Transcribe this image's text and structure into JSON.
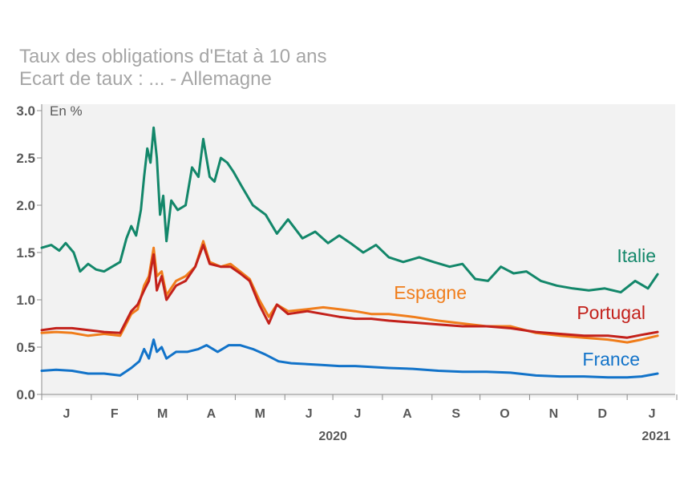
{
  "chart_data": {
    "type": "line",
    "title": "Taux des obligations d'Etat à 10 ans",
    "subtitle": "Ecart de taux : ... - Allemagne",
    "unit_label": "En %",
    "ylim": [
      0,
      3
    ],
    "yticks": [
      "0.0",
      "0.5",
      "1.0",
      "1.5",
      "2.0",
      "2.5",
      "3.0"
    ],
    "x_range": [
      "2020-01-01",
      "2021-01-31"
    ],
    "month_labels": [
      "J",
      "F",
      "M",
      "A",
      "M",
      "J",
      "J",
      "A",
      "S",
      "O",
      "N",
      "D",
      "J"
    ],
    "year_labels": [
      "2020",
      "2021"
    ],
    "grid": false,
    "legend": "inline labels at right end of each series",
    "series": [
      {
        "name": "Italie",
        "color": "#13876a",
        "points": [
          [
            "2020-01-01",
            1.55
          ],
          [
            "2020-01-07",
            1.58
          ],
          [
            "2020-01-12",
            1.52
          ],
          [
            "2020-01-16",
            1.6
          ],
          [
            "2020-01-21",
            1.5
          ],
          [
            "2020-01-25",
            1.3
          ],
          [
            "2020-01-30",
            1.38
          ],
          [
            "2020-02-04",
            1.32
          ],
          [
            "2020-02-09",
            1.3
          ],
          [
            "2020-02-14",
            1.35
          ],
          [
            "2020-02-19",
            1.4
          ],
          [
            "2020-02-23",
            1.65
          ],
          [
            "2020-02-26",
            1.78
          ],
          [
            "2020-02-29",
            1.68
          ],
          [
            "2020-03-03",
            1.95
          ],
          [
            "2020-03-05",
            2.3
          ],
          [
            "2020-03-07",
            2.6
          ],
          [
            "2020-03-09",
            2.45
          ],
          [
            "2020-03-11",
            2.82
          ],
          [
            "2020-03-13",
            2.5
          ],
          [
            "2020-03-15",
            1.9
          ],
          [
            "2020-03-17",
            2.1
          ],
          [
            "2020-03-19",
            1.62
          ],
          [
            "2020-03-22",
            2.05
          ],
          [
            "2020-03-26",
            1.95
          ],
          [
            "2020-03-31",
            2.0
          ],
          [
            "2020-04-04",
            2.4
          ],
          [
            "2020-04-08",
            2.3
          ],
          [
            "2020-04-11",
            2.7
          ],
          [
            "2020-04-15",
            2.3
          ],
          [
            "2020-04-18",
            2.25
          ],
          [
            "2020-04-22",
            2.5
          ],
          [
            "2020-04-26",
            2.45
          ],
          [
            "2020-04-30",
            2.35
          ],
          [
            "2020-05-05",
            2.2
          ],
          [
            "2020-05-12",
            2.0
          ],
          [
            "2020-05-20",
            1.9
          ],
          [
            "2020-05-27",
            1.7
          ],
          [
            "2020-06-03",
            1.85
          ],
          [
            "2020-06-12",
            1.65
          ],
          [
            "2020-06-20",
            1.72
          ],
          [
            "2020-06-28",
            1.6
          ],
          [
            "2020-07-05",
            1.68
          ],
          [
            "2020-07-12",
            1.6
          ],
          [
            "2020-07-20",
            1.5
          ],
          [
            "2020-07-28",
            1.58
          ],
          [
            "2020-08-05",
            1.45
          ],
          [
            "2020-08-14",
            1.4
          ],
          [
            "2020-08-24",
            1.45
          ],
          [
            "2020-09-02",
            1.4
          ],
          [
            "2020-09-12",
            1.35
          ],
          [
            "2020-09-20",
            1.38
          ],
          [
            "2020-09-28",
            1.22
          ],
          [
            "2020-10-06",
            1.2
          ],
          [
            "2020-10-14",
            1.35
          ],
          [
            "2020-10-22",
            1.28
          ],
          [
            "2020-10-30",
            1.3
          ],
          [
            "2020-11-08",
            1.2
          ],
          [
            "2020-11-18",
            1.15
          ],
          [
            "2020-11-28",
            1.12
          ],
          [
            "2020-12-08",
            1.1
          ],
          [
            "2020-12-18",
            1.12
          ],
          [
            "2020-12-28",
            1.08
          ],
          [
            "2021-01-06",
            1.2
          ],
          [
            "2021-01-14",
            1.12
          ],
          [
            "2021-01-20",
            1.27
          ]
        ]
      },
      {
        "name": "Espagne",
        "color": "#f07d1b",
        "points": [
          [
            "2020-01-01",
            0.65
          ],
          [
            "2020-01-10",
            0.66
          ],
          [
            "2020-01-20",
            0.65
          ],
          [
            "2020-01-30",
            0.62
          ],
          [
            "2020-02-09",
            0.64
          ],
          [
            "2020-02-19",
            0.62
          ],
          [
            "2020-02-26",
            0.85
          ],
          [
            "2020-03-01",
            0.9
          ],
          [
            "2020-03-05",
            1.15
          ],
          [
            "2020-03-08",
            1.25
          ],
          [
            "2020-03-11",
            1.55
          ],
          [
            "2020-03-13",
            1.25
          ],
          [
            "2020-03-16",
            1.3
          ],
          [
            "2020-03-19",
            1.05
          ],
          [
            "2020-03-25",
            1.2
          ],
          [
            "2020-03-31",
            1.25
          ],
          [
            "2020-04-06",
            1.35
          ],
          [
            "2020-04-11",
            1.62
          ],
          [
            "2020-04-15",
            1.4
          ],
          [
            "2020-04-22",
            1.35
          ],
          [
            "2020-04-28",
            1.38
          ],
          [
            "2020-05-04",
            1.3
          ],
          [
            "2020-05-10",
            1.22
          ],
          [
            "2020-05-16",
            1.0
          ],
          [
            "2020-05-22",
            0.82
          ],
          [
            "2020-05-27",
            0.95
          ],
          [
            "2020-06-03",
            0.88
          ],
          [
            "2020-06-15",
            0.9
          ],
          [
            "2020-06-25",
            0.92
          ],
          [
            "2020-07-05",
            0.9
          ],
          [
            "2020-07-15",
            0.88
          ],
          [
            "2020-07-25",
            0.85
          ],
          [
            "2020-08-05",
            0.85
          ],
          [
            "2020-08-20",
            0.82
          ],
          [
            "2020-09-05",
            0.78
          ],
          [
            "2020-09-20",
            0.75
          ],
          [
            "2020-10-05",
            0.72
          ],
          [
            "2020-10-20",
            0.72
          ],
          [
            "2020-11-05",
            0.65
          ],
          [
            "2020-11-20",
            0.62
          ],
          [
            "2020-12-05",
            0.6
          ],
          [
            "2020-12-20",
            0.58
          ],
          [
            "2021-01-01",
            0.55
          ],
          [
            "2021-01-10",
            0.58
          ],
          [
            "2021-01-20",
            0.62
          ]
        ]
      },
      {
        "name": "Portugal",
        "color": "#c3211b",
        "points": [
          [
            "2020-01-01",
            0.68
          ],
          [
            "2020-01-10",
            0.7
          ],
          [
            "2020-01-20",
            0.7
          ],
          [
            "2020-01-30",
            0.68
          ],
          [
            "2020-02-09",
            0.66
          ],
          [
            "2020-02-19",
            0.65
          ],
          [
            "2020-02-26",
            0.88
          ],
          [
            "2020-03-01",
            0.95
          ],
          [
            "2020-03-05",
            1.1
          ],
          [
            "2020-03-08",
            1.2
          ],
          [
            "2020-03-11",
            1.48
          ],
          [
            "2020-03-13",
            1.1
          ],
          [
            "2020-03-16",
            1.25
          ],
          [
            "2020-03-19",
            1.0
          ],
          [
            "2020-03-25",
            1.15
          ],
          [
            "2020-03-31",
            1.2
          ],
          [
            "2020-04-06",
            1.35
          ],
          [
            "2020-04-11",
            1.58
          ],
          [
            "2020-04-15",
            1.38
          ],
          [
            "2020-04-22",
            1.35
          ],
          [
            "2020-04-28",
            1.35
          ],
          [
            "2020-05-04",
            1.28
          ],
          [
            "2020-05-10",
            1.2
          ],
          [
            "2020-05-16",
            0.95
          ],
          [
            "2020-05-22",
            0.75
          ],
          [
            "2020-05-27",
            0.95
          ],
          [
            "2020-06-03",
            0.85
          ],
          [
            "2020-06-15",
            0.88
          ],
          [
            "2020-06-25",
            0.85
          ],
          [
            "2020-07-05",
            0.82
          ],
          [
            "2020-07-15",
            0.8
          ],
          [
            "2020-07-25",
            0.8
          ],
          [
            "2020-08-05",
            0.78
          ],
          [
            "2020-08-20",
            0.76
          ],
          [
            "2020-09-05",
            0.74
          ],
          [
            "2020-09-20",
            0.72
          ],
          [
            "2020-10-05",
            0.72
          ],
          [
            "2020-10-20",
            0.7
          ],
          [
            "2020-11-05",
            0.66
          ],
          [
            "2020-11-20",
            0.64
          ],
          [
            "2020-12-05",
            0.62
          ],
          [
            "2020-12-20",
            0.62
          ],
          [
            "2021-01-01",
            0.6
          ],
          [
            "2021-01-10",
            0.63
          ],
          [
            "2021-01-20",
            0.66
          ]
        ]
      },
      {
        "name": "France",
        "color": "#1273c9",
        "points": [
          [
            "2020-01-01",
            0.25
          ],
          [
            "2020-01-10",
            0.26
          ],
          [
            "2020-01-20",
            0.25
          ],
          [
            "2020-01-30",
            0.22
          ],
          [
            "2020-02-09",
            0.22
          ],
          [
            "2020-02-19",
            0.2
          ],
          [
            "2020-02-26",
            0.28
          ],
          [
            "2020-03-02",
            0.35
          ],
          [
            "2020-03-05",
            0.48
          ],
          [
            "2020-03-08",
            0.38
          ],
          [
            "2020-03-11",
            0.58
          ],
          [
            "2020-03-13",
            0.45
          ],
          [
            "2020-03-16",
            0.5
          ],
          [
            "2020-03-19",
            0.38
          ],
          [
            "2020-03-25",
            0.45
          ],
          [
            "2020-04-01",
            0.45
          ],
          [
            "2020-04-08",
            0.48
          ],
          [
            "2020-04-13",
            0.52
          ],
          [
            "2020-04-20",
            0.45
          ],
          [
            "2020-04-27",
            0.52
          ],
          [
            "2020-05-04",
            0.52
          ],
          [
            "2020-05-12",
            0.48
          ],
          [
            "2020-05-20",
            0.42
          ],
          [
            "2020-05-28",
            0.35
          ],
          [
            "2020-06-05",
            0.33
          ],
          [
            "2020-06-15",
            0.32
          ],
          [
            "2020-06-25",
            0.31
          ],
          [
            "2020-07-05",
            0.3
          ],
          [
            "2020-07-15",
            0.3
          ],
          [
            "2020-07-25",
            0.29
          ],
          [
            "2020-08-05",
            0.28
          ],
          [
            "2020-08-20",
            0.27
          ],
          [
            "2020-09-05",
            0.25
          ],
          [
            "2020-09-20",
            0.24
          ],
          [
            "2020-10-05",
            0.24
          ],
          [
            "2020-10-20",
            0.23
          ],
          [
            "2020-11-05",
            0.2
          ],
          [
            "2020-11-20",
            0.19
          ],
          [
            "2020-12-05",
            0.19
          ],
          [
            "2020-12-20",
            0.18
          ],
          [
            "2021-01-01",
            0.18
          ],
          [
            "2021-01-10",
            0.19
          ],
          [
            "2021-01-20",
            0.22
          ]
        ]
      }
    ]
  }
}
